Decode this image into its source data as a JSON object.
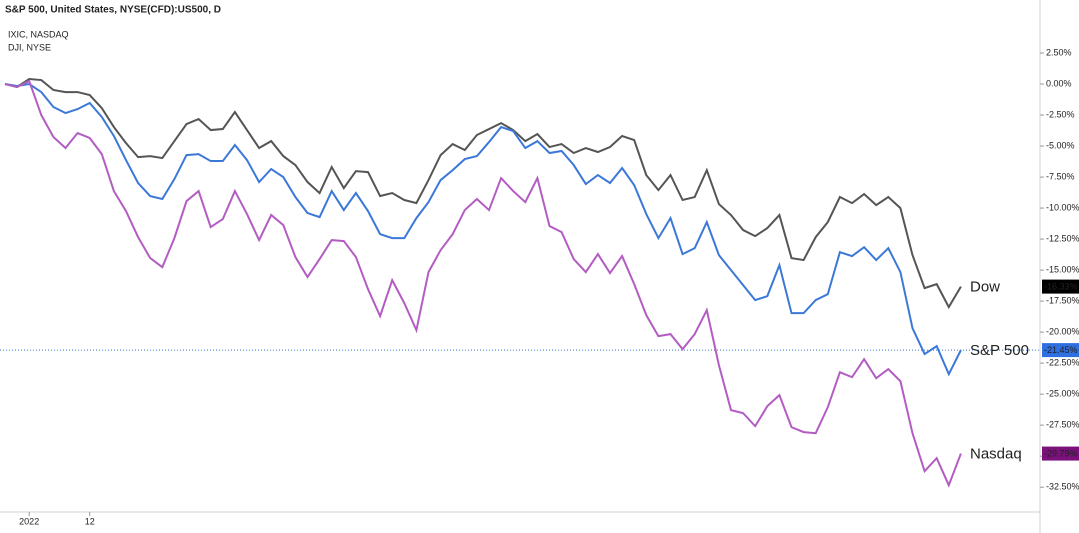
{
  "chart_data": {
    "type": "line",
    "title": "S&P 500, United States, NYSE(CFD):US500, D",
    "subtitles": [
      "IXIC, NASDAQ",
      "DJI, NYSE"
    ],
    "categories": [
      null,
      null,
      "2022",
      null,
      null,
      null,
      null,
      "12",
      null,
      null,
      null,
      null,
      null,
      null,
      null,
      null,
      null,
      null,
      null,
      null,
      null,
      null,
      null,
      null,
      null,
      null,
      null,
      null,
      null,
      null,
      null,
      null,
      null,
      null,
      null,
      null,
      null,
      null,
      null,
      null,
      null,
      null,
      null,
      null,
      null,
      null,
      null,
      null,
      null,
      null,
      null,
      null,
      null,
      null,
      null,
      null,
      null,
      null,
      null,
      null,
      null,
      null,
      null,
      null,
      null,
      null,
      null,
      null,
      null,
      null,
      null,
      null,
      null,
      null,
      null,
      null,
      null,
      null,
      null,
      null
    ],
    "series": [
      {
        "name": "Dow",
        "color": "#555555",
        "tag_color": "#000000",
        "end_label": "-16.33%",
        "values": [
          0,
          -0.24,
          0.4,
          0.32,
          -0.48,
          -0.65,
          -0.65,
          -0.89,
          -1.94,
          -3.47,
          -4.76,
          -5.89,
          -5.81,
          -5.97,
          -4.6,
          -3.23,
          -2.82,
          -3.71,
          -3.63,
          -2.26,
          -3.71,
          -5.16,
          -4.6,
          -5.81,
          -6.53,
          -7.9,
          -8.79,
          -6.69,
          -8.39,
          -7.02,
          -7.1,
          -9.03,
          -8.79,
          -9.35,
          -9.6,
          -7.74,
          -5.73,
          -4.84,
          -5.32,
          -4.11,
          -3.63,
          -3.15,
          -3.71,
          -4.6,
          -4.03,
          -5.08,
          -4.84,
          -5.56,
          -5.16,
          -5.48,
          -5.08,
          -4.19,
          -4.52,
          -7.34,
          -8.55,
          -7.34,
          -9.35,
          -9.11,
          -6.94,
          -9.68,
          -10.56,
          -11.77,
          -12.26,
          -11.61,
          -10.56,
          -14.03,
          -14.19,
          -12.34,
          -11.13,
          -9.11,
          -9.6,
          -8.87,
          -9.76,
          -9.11,
          -10,
          -13.79,
          -16.45,
          -16.13,
          -17.98,
          -16.33
        ]
      },
      {
        "name": "S&P 500",
        "color": "#3b78d8",
        "tag_color": "#2f6fe0",
        "end_label": "-21.45%",
        "price_line": true,
        "values": [
          0,
          -0.16,
          0,
          -0.65,
          -1.85,
          -2.34,
          -2.02,
          -1.53,
          -2.66,
          -4.19,
          -6.13,
          -7.98,
          -9.03,
          -9.27,
          -7.66,
          -5.73,
          -5.65,
          -6.21,
          -6.21,
          -4.92,
          -6.13,
          -7.9,
          -6.85,
          -7.5,
          -9.11,
          -10.4,
          -10.73,
          -8.63,
          -10.16,
          -8.79,
          -10.24,
          -12.1,
          -12.42,
          -12.42,
          -10.81,
          -9.52,
          -7.74,
          -6.94,
          -6.05,
          -5.81,
          -4.68,
          -3.47,
          -3.79,
          -5.16,
          -4.6,
          -5.56,
          -5.4,
          -6.53,
          -8.06,
          -7.34,
          -7.98,
          -6.77,
          -8.15,
          -10.48,
          -12.42,
          -10.81,
          -13.71,
          -13.23,
          -11.13,
          -13.79,
          -15,
          -16.21,
          -17.42,
          -17.1,
          -14.6,
          -18.47,
          -18.47,
          -17.42,
          -16.94,
          -13.55,
          -13.87,
          -13.15,
          -14.19,
          -13.23,
          -15.16,
          -19.68,
          -21.77,
          -21.13,
          -23.39,
          -21.45
        ]
      },
      {
        "name": "Nasdaq",
        "color": "#b35cc2",
        "tag_color": "#7b127b",
        "end_label": "-29.79%",
        "values": [
          0,
          -0.24,
          0.24,
          -2.5,
          -4.27,
          -5.16,
          -3.95,
          -4.35,
          -5.65,
          -8.63,
          -10.24,
          -12.34,
          -14.03,
          -14.76,
          -12.42,
          -9.44,
          -8.63,
          -11.53,
          -10.89,
          -8.63,
          -10.48,
          -12.58,
          -10.56,
          -11.37,
          -13.95,
          -15.56,
          -14.11,
          -12.58,
          -12.66,
          -13.95,
          -16.53,
          -18.71,
          -15.81,
          -17.66,
          -19.84,
          -15.16,
          -13.39,
          -12.1,
          -10.16,
          -9.27,
          -10.16,
          -7.58,
          -8.63,
          -9.52,
          -7.58,
          -11.45,
          -11.94,
          -14.11,
          -15.16,
          -13.71,
          -15.24,
          -13.87,
          -16.13,
          -18.63,
          -20.32,
          -20.16,
          -21.37,
          -20.16,
          -18.23,
          -22.66,
          -26.29,
          -26.53,
          -27.58,
          -25.97,
          -25.08,
          -27.66,
          -28.06,
          -28.15,
          -26.05,
          -23.23,
          -23.63,
          -22.18,
          -23.71,
          -22.98,
          -23.95,
          -28.15,
          -31.21,
          -30.16,
          -32.34,
          -29.79
        ]
      }
    ],
    "ylim": [
      -34.5,
      5
    ],
    "yticks": [
      {
        "value": 2.5,
        "label": "2.50%"
      },
      {
        "value": 0,
        "label": "0.00%"
      },
      {
        "value": -2.5,
        "label": "-2.50%"
      },
      {
        "value": -5,
        "label": "-5.00%"
      },
      {
        "value": -7.5,
        "label": "-7.50%"
      },
      {
        "value": -10,
        "label": "-10.00%"
      },
      {
        "value": -12.5,
        "label": "-12.50%"
      },
      {
        "value": -15,
        "label": "-15.00%"
      },
      {
        "value": -17.5,
        "label": "-17.50%"
      },
      {
        "value": -20,
        "label": "-20.00%"
      },
      {
        "value": -22.5,
        "label": "-22.50%"
      },
      {
        "value": -25,
        "label": "-25.00%"
      },
      {
        "value": -27.5,
        "label": "-27.50%"
      },
      {
        "value": -30,
        "label": "-30.00%"
      },
      {
        "value": -32.5,
        "label": "-32.50%"
      }
    ],
    "annotation_color": "#e00000",
    "grid": false
  }
}
